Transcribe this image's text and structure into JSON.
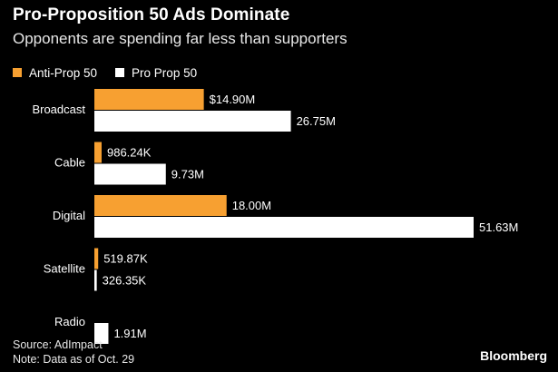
{
  "header": {
    "title": "Pro-Proposition 50 Ads Dominate",
    "subtitle": "Opponents are spending far less than supporters"
  },
  "legend": [
    {
      "label": "Anti-Prop 50",
      "color": "#f7a031"
    },
    {
      "label": "Pro Prop 50",
      "color": "#ffffff"
    }
  ],
  "footer": {
    "source": "Source: AdImpact",
    "note": "Note: Data as of Oct. 29",
    "brand": "Bloomberg"
  },
  "chart_data": {
    "type": "bar",
    "orientation": "horizontal",
    "title": "Pro-Proposition 50 Ads Dominate",
    "subtitle": "Opponents are spending far less than supporters",
    "categories": [
      "Broadcast",
      "Cable",
      "Digital",
      "Satellite",
      "Radio"
    ],
    "unit": "USD",
    "series": [
      {
        "name": "Anti-Prop 50",
        "color": "#f7a031",
        "values": [
          14900000,
          986240,
          18000000,
          519870,
          0
        ],
        "labels": [
          "$14.90M",
          "986.24K",
          "18.00M",
          "519.87K",
          ""
        ]
      },
      {
        "name": "Pro Prop 50",
        "color": "#ffffff",
        "values": [
          26750000,
          9730000,
          51630000,
          326350,
          1910000
        ],
        "labels": [
          "26.75M",
          "9.73M",
          "51.63M",
          "326.35K",
          "1.91M"
        ]
      }
    ],
    "xlim": [
      0,
      51630000
    ],
    "grid": false,
    "legend_position": "top-left"
  }
}
